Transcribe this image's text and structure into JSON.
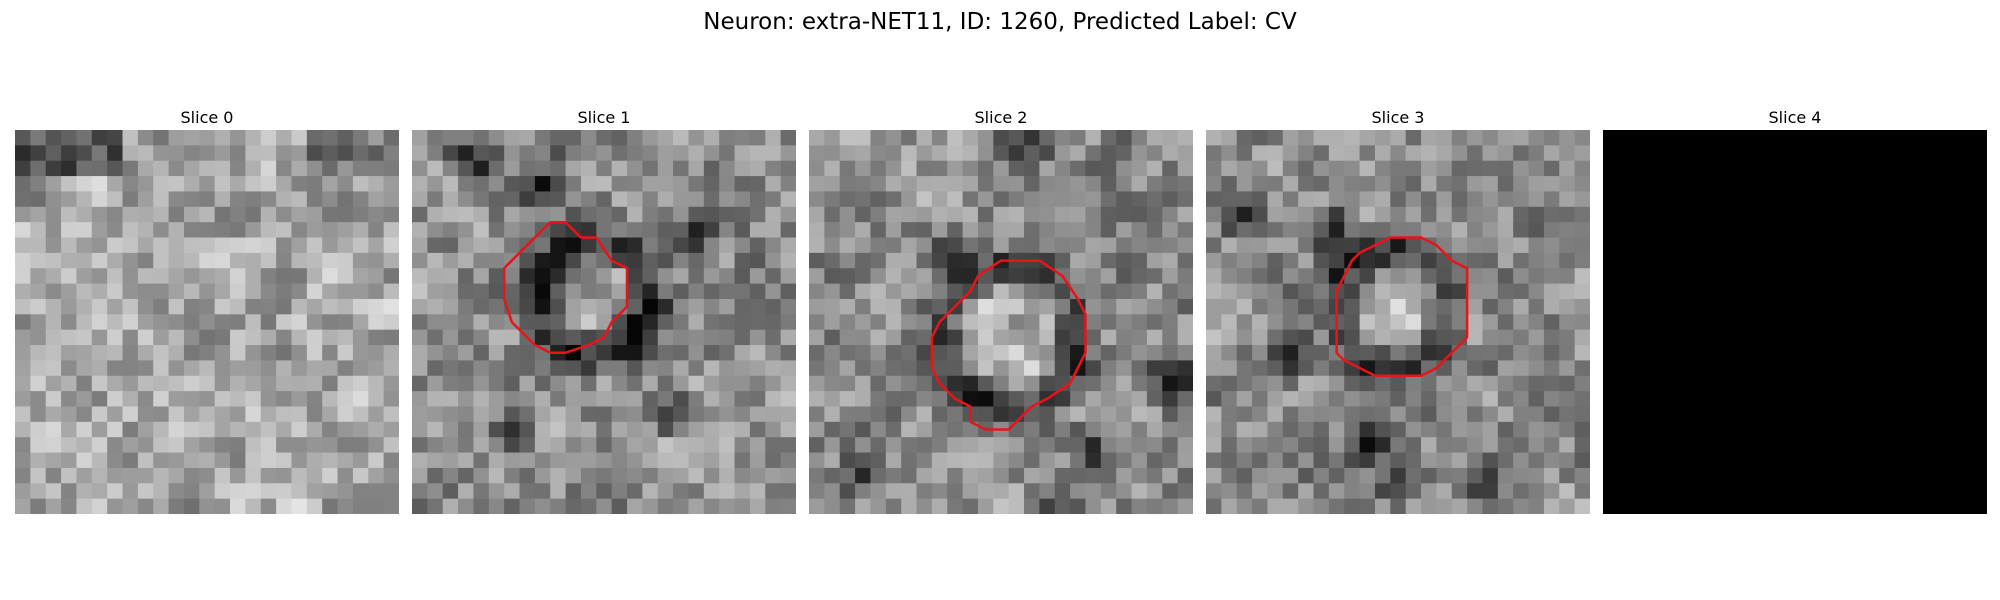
{
  "figure": {
    "title": "Neuron: extra-NET11, ID: 1260, Predicted Label: CV",
    "outline_color": "#e8141a"
  },
  "panels": [
    {
      "title": "Slice 0",
      "has_outline": false,
      "blank": false
    },
    {
      "title": "Slice 1",
      "has_outline": true,
      "blank": false
    },
    {
      "title": "Slice 2",
      "has_outline": true,
      "blank": false
    },
    {
      "title": "Slice 3",
      "has_outline": true,
      "blank": false
    },
    {
      "title": "Slice 4",
      "has_outline": false,
      "blank": true
    }
  ]
}
